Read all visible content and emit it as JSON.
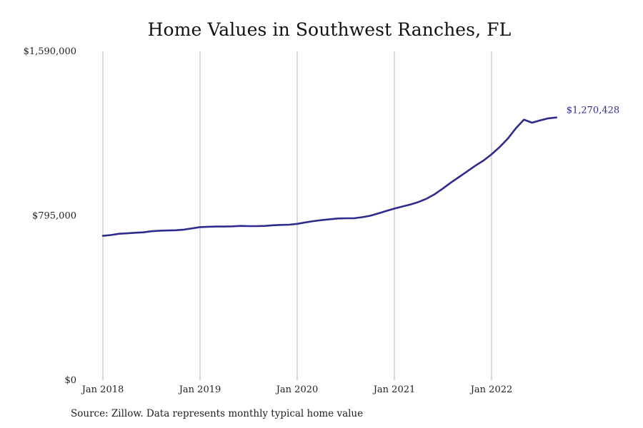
{
  "chart_data": {
    "type": "line",
    "title": "Home Values in Southwest Ranches, FL",
    "xlabel": "",
    "ylabel": "",
    "ylim": [
      0,
      1590000
    ],
    "y_ticks": [
      {
        "value": 0,
        "label": "$0"
      },
      {
        "value": 795000,
        "label": "$795,000"
      },
      {
        "value": 1590000,
        "label": "$1,590,000"
      }
    ],
    "x_range": [
      2018.0,
      2022.75
    ],
    "x_ticks": [
      {
        "value": 2018,
        "label": "Jan 2018"
      },
      {
        "value": 2019,
        "label": "Jan 2019"
      },
      {
        "value": 2020,
        "label": "Jan 2020"
      },
      {
        "value": 2021,
        "label": "Jan 2021"
      },
      {
        "value": 2022,
        "label": "Jan 2022"
      }
    ],
    "grid": "vertical",
    "series": [
      {
        "name": "Typical home value",
        "color": "#2e2b8c",
        "x": [
          2018.0,
          2018.083,
          2018.167,
          2018.25,
          2018.333,
          2018.417,
          2018.5,
          2018.583,
          2018.667,
          2018.75,
          2018.833,
          2018.917,
          2019.0,
          2019.083,
          2019.167,
          2019.25,
          2019.333,
          2019.417,
          2019.5,
          2019.583,
          2019.667,
          2019.75,
          2019.833,
          2019.917,
          2020.0,
          2020.083,
          2020.167,
          2020.25,
          2020.333,
          2020.417,
          2020.5,
          2020.583,
          2020.667,
          2020.75,
          2020.833,
          2020.917,
          2021.0,
          2021.083,
          2021.167,
          2021.25,
          2021.333,
          2021.417,
          2021.5,
          2021.583,
          2021.667,
          2021.75,
          2021.833,
          2021.917,
          2022.0,
          2022.083,
          2022.167,
          2022.25,
          2022.333,
          2022.417,
          2022.5,
          2022.583,
          2022.667
        ],
        "values": [
          698000,
          702000,
          708000,
          710000,
          713000,
          715000,
          720000,
          723000,
          724000,
          725000,
          728000,
          734000,
          740000,
          742000,
          743000,
          743000,
          744000,
          746000,
          745000,
          745000,
          746000,
          749000,
          751000,
          752000,
          756000,
          763000,
          769000,
          774000,
          778000,
          782000,
          783000,
          783000,
          788000,
          795000,
          806000,
          818000,
          830000,
          840000,
          850000,
          862000,
          878000,
          900000,
          927000,
          956000,
          983000,
          1010000,
          1037000,
          1062000,
          1092000,
          1127000,
          1168000,
          1218000,
          1260000,
          1245000,
          1256000,
          1266000,
          1270428
        ]
      }
    ],
    "annotations": [
      {
        "text": "$1,270,428",
        "x": 2022.667,
        "y": 1270428,
        "color": "#2e2b8c"
      }
    ],
    "source": "Source: Zillow. Data represents monthly typical home value"
  }
}
